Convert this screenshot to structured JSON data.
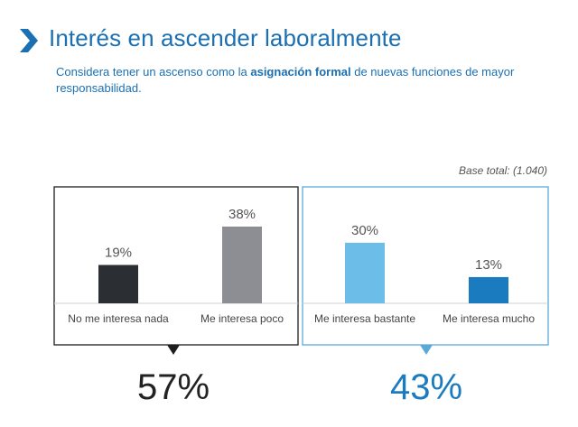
{
  "header": {
    "title": "Interés en ascender laboralmente",
    "subtitle_pre": "Considera tener un ascenso como la ",
    "subtitle_bold": "asignación formal",
    "subtitle_post": " de nuevas funciones de mayor responsabilidad.",
    "accent_color": "#1a70b3",
    "icon": "chevron-right-icon"
  },
  "base_total": "Base total: (1.040)",
  "chart_data": {
    "type": "bar",
    "categories": [
      "No me interesa nada",
      "Me interesa poco",
      "Me interesa bastante",
      "Me interesa mucho"
    ],
    "values": [
      19,
      38,
      30,
      13
    ],
    "value_labels": [
      "19%",
      "38%",
      "30%",
      "13%"
    ],
    "colors": [
      "#2b2f33",
      "#8c8e94",
      "#6cbde8",
      "#1a7bbf"
    ],
    "ylim": [
      0,
      40
    ],
    "groups": [
      {
        "categories": [
          0,
          1
        ],
        "total_label": "57%",
        "border_color": "#1e1e1e",
        "total_color": "#222222"
      },
      {
        "categories": [
          2,
          3
        ],
        "total_label": "43%",
        "border_color": "#5aaad8",
        "total_color": "#1a7bbf"
      }
    ]
  }
}
